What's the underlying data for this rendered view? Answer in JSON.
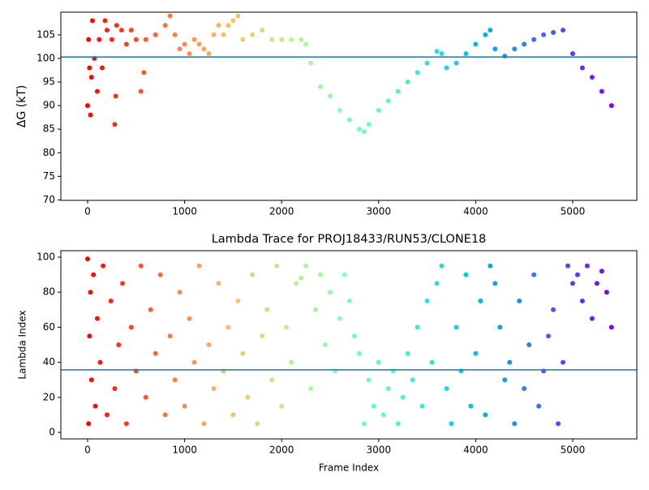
{
  "chart_data": [
    {
      "type": "scatter",
      "ylabel": "ΔG (kT)",
      "colormap": "rainbow",
      "hline": 100.3,
      "hline_color": "#1f77b4",
      "xlim": [
        -276,
        5661
      ],
      "ylim": [
        69.9,
        109.8
      ],
      "xticks": [
        0,
        1000,
        2000,
        3000,
        4000,
        5000
      ],
      "yticks": [
        70,
        75,
        80,
        85,
        90,
        95,
        100,
        105
      ],
      "x": [
        0,
        10,
        20,
        30,
        40,
        50,
        70,
        100,
        120,
        150,
        180,
        200,
        250,
        280,
        290,
        300,
        350,
        400,
        450,
        500,
        550,
        580,
        600,
        700,
        800,
        850,
        900,
        950,
        1000,
        1050,
        1100,
        1150,
        1200,
        1250,
        1300,
        1350,
        1400,
        1450,
        1500,
        1550,
        1600,
        1700,
        1800,
        1900,
        2000,
        2100,
        2200,
        2250,
        2300,
        2400,
        2500,
        2600,
        2700,
        2800,
        2850,
        2900,
        3000,
        3100,
        3200,
        3300,
        3400,
        3500,
        3600,
        3650,
        3700,
        3800,
        3900,
        4000,
        4100,
        4150,
        4200,
        4300,
        4400,
        4500,
        4600,
        4700,
        4800,
        4900,
        5000,
        5100,
        5200,
        5300,
        5400
      ],
      "y": [
        90,
        104,
        98,
        88,
        96,
        108,
        100,
        93,
        104,
        98,
        108,
        106,
        104,
        86,
        92,
        107,
        106,
        103,
        106,
        104,
        93,
        97,
        104,
        105,
        107,
        109,
        105,
        102,
        103,
        101,
        104,
        103,
        102,
        101,
        105,
        107,
        105,
        107,
        108,
        109,
        104,
        105,
        106,
        104,
        104,
        104,
        104,
        103,
        99,
        94,
        92,
        89,
        87,
        85,
        84.5,
        86,
        89,
        91,
        93,
        95,
        97,
        99,
        101.5,
        101,
        98,
        99,
        101,
        103,
        105,
        106,
        102,
        100.5,
        102,
        103,
        104,
        105,
        105.5,
        106,
        101,
        98,
        96,
        93,
        90
      ]
    },
    {
      "type": "scatter",
      "title": "Lambda Trace for PROJ18433/RUN53/CLONE18",
      "xlabel": "Frame Index",
      "ylabel": "Lambda Index",
      "colormap": "rainbow",
      "hline": 35.7,
      "hline_color": "#1f77b4",
      "xlim": [
        -276,
        5661
      ],
      "ylim": [
        -3.7,
        103.7
      ],
      "xticks": [
        0,
        1000,
        2000,
        3000,
        4000,
        5000
      ],
      "yticks": [
        0,
        20,
        40,
        60,
        80,
        100
      ],
      "x": [
        0,
        10,
        20,
        30,
        40,
        60,
        80,
        100,
        130,
        160,
        200,
        240,
        280,
        320,
        360,
        400,
        450,
        500,
        550,
        600,
        650,
        700,
        750,
        800,
        850,
        900,
        950,
        1000,
        1050,
        1100,
        1150,
        1200,
        1250,
        1300,
        1350,
        1400,
        1450,
        1500,
        1550,
        1600,
        1650,
        1700,
        1750,
        1800,
        1850,
        1900,
        1950,
        2000,
        2050,
        2100,
        2150,
        2200,
        2250,
        2300,
        2350,
        2400,
        2450,
        2500,
        2550,
        2600,
        2650,
        2700,
        2750,
        2800,
        2850,
        2900,
        2950,
        3000,
        3050,
        3100,
        3150,
        3200,
        3250,
        3300,
        3350,
        3400,
        3450,
        3500,
        3550,
        3600,
        3650,
        3700,
        3750,
        3800,
        3850,
        3900,
        3950,
        4000,
        4050,
        4100,
        4150,
        4200,
        4250,
        4300,
        4350,
        4400,
        4450,
        4500,
        4550,
        4600,
        4650,
        4700,
        4750,
        4800,
        4850,
        4900,
        4950,
        5000,
        5050,
        5100,
        5150,
        5200,
        5250,
        5300,
        5350,
        5400
      ],
      "y": [
        99,
        5,
        55,
        80,
        30,
        90,
        15,
        65,
        40,
        95,
        10,
        75,
        25,
        50,
        85,
        5,
        60,
        35,
        95,
        20,
        70,
        45,
        90,
        10,
        55,
        30,
        80,
        15,
        65,
        40,
        95,
        5,
        50,
        25,
        85,
        35,
        60,
        10,
        75,
        45,
        20,
        90,
        5,
        55,
        70,
        30,
        95,
        15,
        60,
        40,
        85,
        88,
        95,
        25,
        70,
        90,
        50,
        80,
        35,
        65,
        90,
        75,
        55,
        45,
        5,
        30,
        15,
        40,
        10,
        25,
        35,
        5,
        20,
        45,
        30,
        60,
        15,
        75,
        40,
        85,
        95,
        25,
        5,
        60,
        35,
        90,
        15,
        45,
        75,
        10,
        95,
        85,
        60,
        30,
        40,
        5,
        75,
        25,
        50,
        90,
        15,
        35,
        55,
        70,
        5,
        40,
        95,
        85,
        90,
        75,
        95,
        65,
        85,
        92,
        80,
        60
      ]
    }
  ]
}
